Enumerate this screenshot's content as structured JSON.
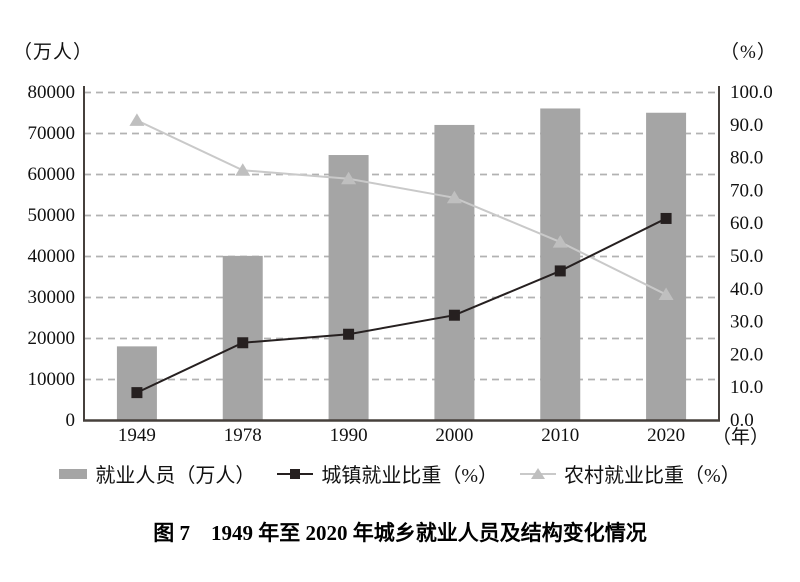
{
  "figure": {
    "left_unit": "（万人）",
    "right_unit": "（%）",
    "x_unit": "（年）",
    "caption": "图 7　1949 年至 2020 年城乡就业人员及结构变化情况"
  },
  "chart_data": {
    "type": "combo",
    "title": "图 7　1949 年至 2020 年城乡就业人员及结构变化情况",
    "categories": [
      "1949",
      "1978",
      "1990",
      "2000",
      "2010",
      "2020"
    ],
    "series": [
      {
        "name": "就业人员（万人）",
        "type": "bar",
        "axis": "left",
        "values": [
          18082,
          40152,
          64749,
          72085,
          76105,
          75064
        ],
        "color": "#a5a5a5"
      },
      {
        "name": "城镇就业比重（%）",
        "type": "line",
        "axis": "right",
        "marker": "square",
        "values": [
          8.5,
          23.7,
          26.3,
          32.1,
          45.6,
          61.6
        ],
        "color": "#262020",
        "marker_color": "#262020"
      },
      {
        "name": "农村就业比重（%）",
        "type": "line",
        "axis": "right",
        "marker": "triangle",
        "values": [
          91.5,
          76.3,
          73.7,
          67.9,
          54.4,
          38.4
        ],
        "color": "#c9c9c9",
        "marker_color": "#bfbfbf"
      }
    ],
    "left_axis": {
      "label": "（万人）",
      "min": 0,
      "max": 80000,
      "ticks": [
        "0",
        "10000",
        "20000",
        "30000",
        "40000",
        "50000",
        "60000",
        "70000",
        "80000"
      ]
    },
    "right_axis": {
      "label": "（%）",
      "min": 0,
      "max": 100,
      "ticks": [
        "0.0",
        "10.0",
        "20.0",
        "30.0",
        "40.0",
        "50.0",
        "60.0",
        "70.0",
        "80.0",
        "90.0",
        "100.0"
      ]
    },
    "x_axis": {
      "label": "（年）"
    },
    "grid": "horizontal-dashed",
    "legend_position": "bottom"
  },
  "legend": {
    "items": [
      {
        "label": "就业人员（万人）",
        "swatch": "bar"
      },
      {
        "label": "城镇就业比重（%）",
        "swatch": "square-line"
      },
      {
        "label": "农村就业比重（%）",
        "swatch": "triangle-line"
      }
    ]
  },
  "colors": {
    "bar": "#a5a5a5",
    "urban_line": "#262020",
    "rural_line": "#c9c9c9",
    "rural_marker": "#bfbfbf",
    "grid": "#b2b2b2",
    "axis": "#46403c",
    "text": "#111111",
    "background": "#ffffff"
  }
}
